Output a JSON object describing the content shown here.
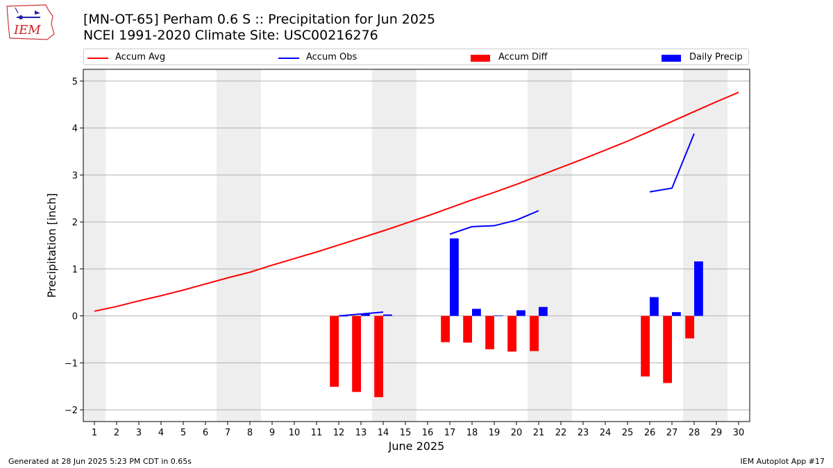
{
  "title_line1": "[MN-OT-65] Perham 0.6 S :: Precipitation for Jun 2025",
  "title_line2": "NCEI 1991-2020 Climate Site: USC00216276",
  "logo_text": "IEM",
  "footer_left": "Generated at 28 Jun 2025 5:23 PM CDT in 0.65s",
  "footer_right": "IEM Autoplot App #17",
  "colors": {
    "avg": "#ff0000",
    "obs": "#0000ff",
    "diff": "#ff0000",
    "daily": "#0000ff",
    "weekend": "#eeeeee",
    "grid": "#b0b0b0"
  },
  "chart_data": {
    "type": "bar",
    "xlabel": "June 2025",
    "ylabel": "Precipitation [inch]",
    "xlim": [
      0.5,
      30.5
    ],
    "ylim": [
      -2.25,
      5.25
    ],
    "xticks": [
      1,
      2,
      3,
      4,
      5,
      6,
      7,
      8,
      9,
      10,
      11,
      12,
      13,
      14,
      15,
      16,
      17,
      18,
      19,
      20,
      21,
      22,
      23,
      24,
      25,
      26,
      27,
      28,
      29,
      30
    ],
    "yticks": [
      -2,
      -1,
      0,
      1,
      2,
      3,
      4,
      5
    ],
    "grid": "y",
    "legend_position": "top",
    "weekend_days": [
      1,
      7,
      8,
      14,
      15,
      21,
      22,
      28,
      29
    ],
    "series": [
      {
        "name": "Accum Avg",
        "kind": "line",
        "x": [
          1,
          2,
          3,
          4,
          5,
          6,
          7,
          8,
          9,
          10,
          11,
          12,
          13,
          14,
          15,
          16,
          17,
          18,
          19,
          20,
          21,
          22,
          23,
          24,
          25,
          26,
          27,
          28,
          29,
          30
        ],
        "values": [
          0.1,
          0.2,
          0.32,
          0.43,
          0.55,
          0.68,
          0.81,
          0.93,
          1.08,
          1.22,
          1.36,
          1.51,
          1.66,
          1.81,
          1.97,
          2.13,
          2.3,
          2.47,
          2.63,
          2.8,
          2.98,
          3.16,
          3.34,
          3.53,
          3.72,
          3.93,
          4.14,
          4.35,
          4.56,
          4.76
        ]
      },
      {
        "name": "Accum Obs",
        "kind": "line",
        "segments": [
          {
            "x": [
              12,
              13,
              14
            ],
            "values": [
              0.0,
              0.04,
              0.08
            ]
          },
          {
            "x": [
              17,
              18,
              19,
              20,
              21
            ],
            "values": [
              1.74,
              1.9,
              1.92,
              2.04,
              2.24
            ]
          },
          {
            "x": [
              26,
              27,
              28
            ],
            "values": [
              2.64,
              2.72,
              3.88
            ]
          }
        ]
      },
      {
        "name": "Accum Diff",
        "kind": "bar",
        "x": [
          12,
          13,
          14,
          17,
          18,
          19,
          20,
          21,
          26,
          27,
          28
        ],
        "values": [
          -1.51,
          -1.62,
          -1.73,
          -0.56,
          -0.57,
          -0.71,
          -0.76,
          -0.75,
          -1.29,
          -1.43,
          -0.48
        ]
      },
      {
        "name": "Daily Precip",
        "kind": "bar",
        "x": [
          12,
          13,
          14,
          17,
          18,
          19,
          20,
          21,
          26,
          27,
          28
        ],
        "values": [
          0.0,
          0.04,
          0.03,
          1.65,
          0.15,
          0.01,
          0.12,
          0.19,
          0.4,
          0.08,
          1.16
        ]
      }
    ]
  }
}
